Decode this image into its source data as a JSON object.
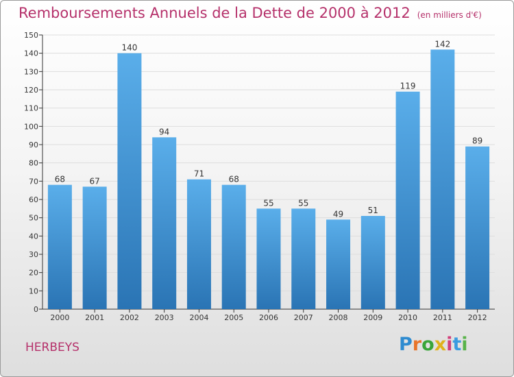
{
  "header": {
    "title": "Remboursements Annuels de la Dette de 2000 à 2012",
    "subtitle": "(en milliers d'€)"
  },
  "footer": {
    "commune": "HERBEYS",
    "logo_letters": [
      "P",
      "r",
      "o",
      "x",
      "i",
      "t",
      "i"
    ],
    "logo_colors": [
      "#2e8bd0",
      "#e8742a",
      "#3aa53a",
      "#e0b21c",
      "#d23f7a",
      "#3a9be0",
      "#58b34a"
    ]
  },
  "colors": {
    "bar_top": "#5aaeea",
    "bar_bottom": "#2a74b4",
    "title": "#b5306a",
    "grid": "#dddddd"
  },
  "chart_data": {
    "type": "bar",
    "title": "Remboursements Annuels de la Dette de 2000 à 2012",
    "subtitle": "(en milliers d'€)",
    "categories": [
      "2000",
      "2001",
      "2002",
      "2003",
      "2004",
      "2005",
      "2006",
      "2007",
      "2008",
      "2009",
      "2010",
      "2011",
      "2012"
    ],
    "values": [
      68,
      67,
      140,
      94,
      71,
      68,
      55,
      55,
      49,
      51,
      119,
      142,
      89
    ],
    "ylim": [
      0,
      150
    ],
    "yticks": [
      0,
      10,
      20,
      30,
      40,
      50,
      60,
      70,
      80,
      90,
      100,
      110,
      120,
      130,
      140,
      150
    ],
    "grid": true,
    "data_labels": true
  }
}
